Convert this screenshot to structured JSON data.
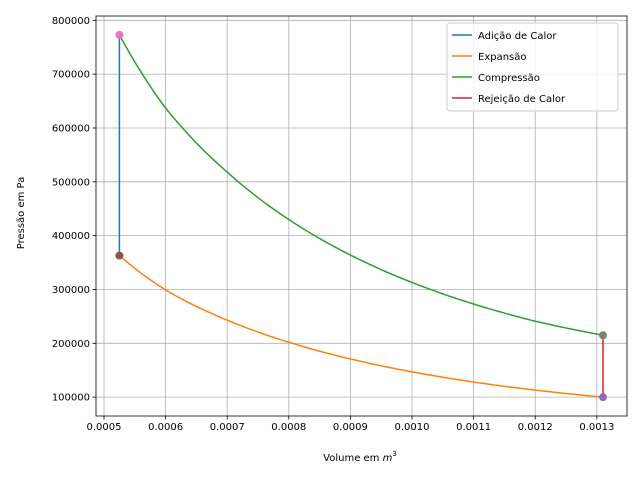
{
  "chart_data": {
    "type": "line",
    "title": "",
    "xlabel": "Volume em ",
    "xlabel_unit": "m",
    "xlabel_exp": "3",
    "ylabel": "Pressão em Pa",
    "xlim": [
      0.000487,
      0.001349
    ],
    "ylim": [
      65000,
      808000
    ],
    "grid": true,
    "legend_position": "top-right",
    "xticks": [
      0.0005,
      0.0006,
      0.0007,
      0.0008,
      0.0009,
      0.001,
      0.0011,
      0.0012,
      0.0013
    ],
    "xtick_labels": [
      "0.0005",
      "0.0006",
      "0.0007",
      "0.0008",
      "0.0009",
      "0.0010",
      "0.0011",
      "0.0012",
      "0.0013"
    ],
    "yticks": [
      100000,
      200000,
      300000,
      400000,
      500000,
      600000,
      700000,
      800000
    ],
    "ytick_labels": [
      "100000",
      "200000",
      "300000",
      "400000",
      "500000",
      "600000",
      "700000",
      "800000"
    ],
    "series": [
      {
        "name": "Adição de Calor",
        "color": "#1f77b4",
        "x": [
          0.000525,
          0.000525
        ],
        "y": [
          363000,
          773000
        ]
      },
      {
        "name": "Expansão",
        "color": "#ff7f0e",
        "x": [
          0.000525,
          0.0006,
          0.0007,
          0.0008,
          0.0009,
          0.001,
          0.0011,
          0.0012,
          0.00131
        ],
        "y": [
          363000,
          299000,
          243000,
          202000,
          171000,
          147000,
          128000,
          113000,
          100000
        ]
      },
      {
        "name": "Compressão",
        "color": "#2ca02c",
        "x": [
          0.000525,
          0.0006,
          0.0007,
          0.0008,
          0.0009,
          0.001,
          0.0011,
          0.0012,
          0.00131
        ],
        "y": [
          773000,
          637000,
          518000,
          430000,
          364000,
          313000,
          273000,
          241000,
          215000
        ]
      },
      {
        "name": "Rejeição de Calor",
        "color": "#d62728",
        "x": [
          0.00131,
          0.00131
        ],
        "y": [
          215000,
          100000
        ]
      }
    ],
    "markers": [
      {
        "x": 0.000525,
        "y": 773000,
        "color": "#e377c2"
      },
      {
        "x": 0.000525,
        "y": 363000,
        "color": "#8c564b"
      },
      {
        "x": 0.00131,
        "y": 215000,
        "color": "#7f7f7f"
      },
      {
        "x": 0.00131,
        "y": 100000,
        "color": "#9467bd"
      }
    ]
  }
}
